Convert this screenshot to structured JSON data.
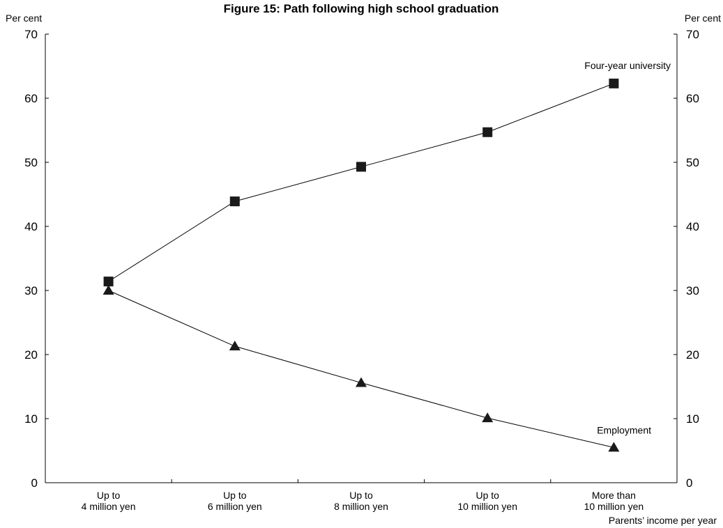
{
  "chart_data": {
    "type": "line",
    "title": "Figure 15: Path following high school graduation",
    "y_unit_left": "Per cent",
    "y_unit_right": "Per cent",
    "xlabel": "Parents’ income per year",
    "ylim": [
      0,
      70
    ],
    "y_ticks": [
      "0",
      "10",
      "20",
      "30",
      "40",
      "50",
      "60",
      "70"
    ],
    "categories": [
      [
        "Up to",
        "4 million yen"
      ],
      [
        "Up to",
        "6 million yen"
      ],
      [
        "Up to",
        "8 million yen"
      ],
      [
        "Up to",
        "10 million yen"
      ],
      [
        "More than",
        "10 million yen"
      ]
    ],
    "series": [
      {
        "name": "Four-year university",
        "marker": "square",
        "values": [
          31.4,
          43.9,
          49.3,
          54.7,
          62.3
        ]
      },
      {
        "name": "Employment",
        "marker": "triangle",
        "values": [
          30.0,
          21.3,
          15.6,
          10.1,
          5.5
        ]
      }
    ],
    "grid": false,
    "legend": "inline labels"
  }
}
